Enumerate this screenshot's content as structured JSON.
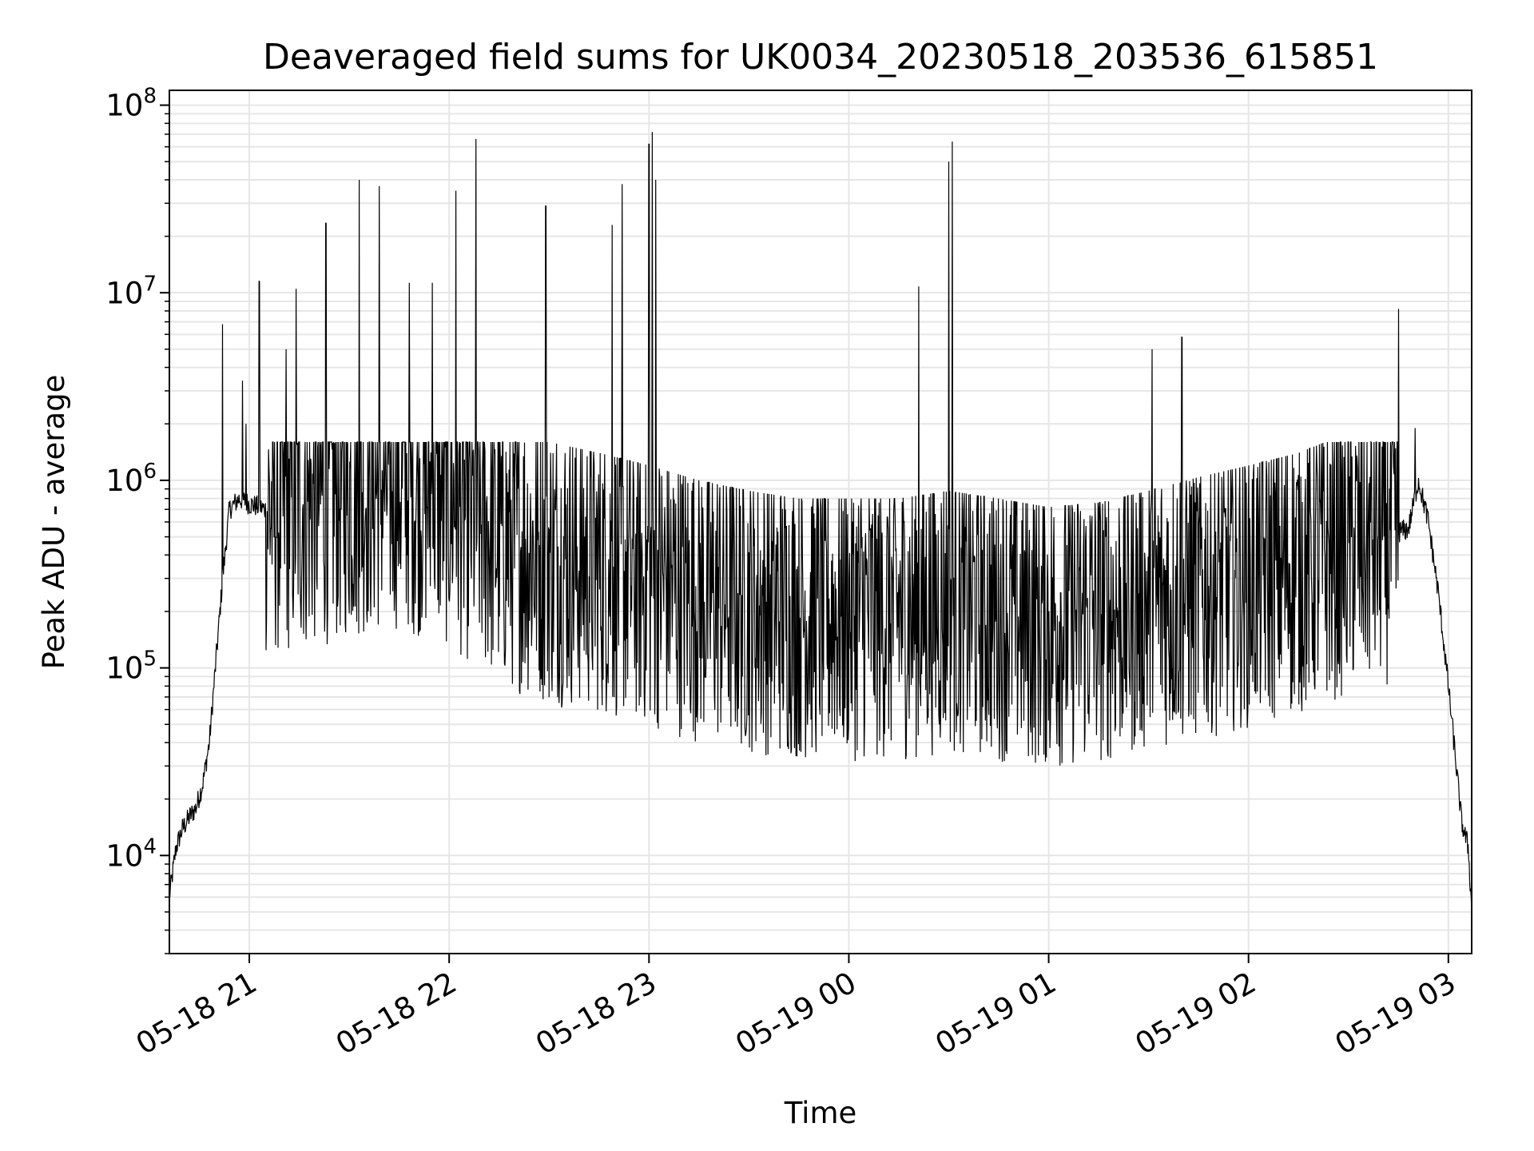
{
  "chart_data": {
    "type": "line",
    "title": "Deaveraged field sums for UK0034_20230518_203536_615851",
    "xlabel": "Time",
    "ylabel": "Peak ADU - average",
    "yscale": "log",
    "ylim": [
      3000,
      120000000
    ],
    "xlim": [
      "2023-05-18 20:36",
      "2023-05-19 03:07"
    ],
    "grid": true,
    "line_color": "#000000",
    "grid_color": "#e6e6e6",
    "x_ticks": [
      {
        "t": "2023-05-18 21:00",
        "label": "05-18 21"
      },
      {
        "t": "2023-05-18 22:00",
        "label": "05-18 22"
      },
      {
        "t": "2023-05-18 23:00",
        "label": "05-18 23"
      },
      {
        "t": "2023-05-19 00:00",
        "label": "05-19 00"
      },
      {
        "t": "2023-05-19 01:00",
        "label": "05-19 01"
      },
      {
        "t": "2023-05-19 02:00",
        "label": "05-19 02"
      },
      {
        "t": "2023-05-19 03:00",
        "label": "05-19 03"
      }
    ],
    "y_ticks": [
      {
        "value": 10000,
        "base": "10",
        "exp": "4"
      },
      {
        "value": 100000,
        "base": "10",
        "exp": "5"
      },
      {
        "value": 1000000,
        "base": "10",
        "exp": "6"
      },
      {
        "value": 10000000,
        "base": "10",
        "exp": "7"
      },
      {
        "value": 100000000,
        "base": "10",
        "exp": "8"
      }
    ],
    "series": [
      {
        "x": [
          "2023-05-18 20:36",
          "2023-05-18 20:38",
          "2023-05-18 20:40",
          "2023-05-18 20:42",
          "2023-05-18 20:44",
          "2023-05-18 20:46",
          "2023-05-18 20:48",
          "2023-05-18 20:50",
          "2023-05-18 20:52",
          "2023-05-18 20:54",
          "2023-05-18 20:57",
          "2023-05-18 21:00",
          "2023-05-18 21:05",
          "2023-05-18 21:15",
          "2023-05-18 21:30",
          "2023-05-18 21:45",
          "2023-05-18 22:00",
          "2023-05-18 22:15",
          "2023-05-18 22:30",
          "2023-05-18 22:45",
          "2023-05-18 23:00",
          "2023-05-18 23:15",
          "2023-05-18 23:30",
          "2023-05-18 23:45",
          "2023-05-19 00:00",
          "2023-05-19 00:15",
          "2023-05-19 00:30",
          "2023-05-19 00:45",
          "2023-05-19 01:00",
          "2023-05-19 01:15",
          "2023-05-19 01:30",
          "2023-05-19 01:45",
          "2023-05-19 02:00",
          "2023-05-19 02:15",
          "2023-05-19 02:30",
          "2023-05-19 02:40",
          "2023-05-19 02:48",
          "2023-05-19 02:51",
          "2023-05-19 02:54",
          "2023-05-19 02:57",
          "2023-05-19 03:00",
          "2023-05-19 03:02",
          "2023-05-19 03:04",
          "2023-05-19 03:06",
          "2023-05-19 03:07"
        ],
        "y": [
          6000,
          11000,
          14000,
          16000,
          18000,
          24000,
          40000,
          110000,
          300000,
          700000,
          800000,
          750000,
          700000,
          750000,
          900000,
          1000000,
          800000,
          500000,
          400000,
          350000,
          300000,
          250000,
          220000,
          200000,
          200000,
          200000,
          220000,
          200000,
          180000,
          190000,
          220000,
          260000,
          300000,
          350000,
          450000,
          500000,
          550000,
          1000000,
          600000,
          250000,
          80000,
          35000,
          15000,
          11000,
          5000
        ]
      }
    ],
    "spikes": [
      {
        "t": "2023-05-18 20:52",
        "y": 6800000
      },
      {
        "t": "2023-05-18 20:58",
        "y": 3400000
      },
      {
        "t": "2023-05-18 20:59",
        "y": 2000000
      },
      {
        "t": "2023-05-18 21:03",
        "y": 11500000
      },
      {
        "t": "2023-05-18 21:11",
        "y": 5000000
      },
      {
        "t": "2023-05-18 21:14",
        "y": 10500000
      },
      {
        "t": "2023-05-18 21:23",
        "y": 23500000
      },
      {
        "t": "2023-05-18 21:33",
        "y": 40000000
      },
      {
        "t": "2023-05-18 21:39",
        "y": 37000000
      },
      {
        "t": "2023-05-18 21:48",
        "y": 11300000
      },
      {
        "t": "2023-05-18 21:55",
        "y": 11300000
      },
      {
        "t": "2023-05-18 22:02",
        "y": 35000000
      },
      {
        "t": "2023-05-18 22:08",
        "y": 66000000
      },
      {
        "t": "2023-05-18 22:29",
        "y": 29000000
      },
      {
        "t": "2023-05-18 22:49",
        "y": 23000000
      },
      {
        "t": "2023-05-18 22:52",
        "y": 38000000
      },
      {
        "t": "2023-05-18 23:00",
        "y": 62000000
      },
      {
        "t": "2023-05-18 23:01",
        "y": 72000000
      },
      {
        "t": "2023-05-18 23:02",
        "y": 40000000
      },
      {
        "t": "2023-05-19 00:21",
        "y": 10800000
      },
      {
        "t": "2023-05-19 00:30",
        "y": 50000000
      },
      {
        "t": "2023-05-19 00:31",
        "y": 64000000
      },
      {
        "t": "2023-05-19 01:31",
        "y": 5000000
      },
      {
        "t": "2023-05-19 01:40",
        "y": 5800000
      },
      {
        "t": "2023-05-19 02:45",
        "y": 8200000
      },
      {
        "t": "2023-05-19 02:50",
        "y": 1900000
      }
    ]
  }
}
